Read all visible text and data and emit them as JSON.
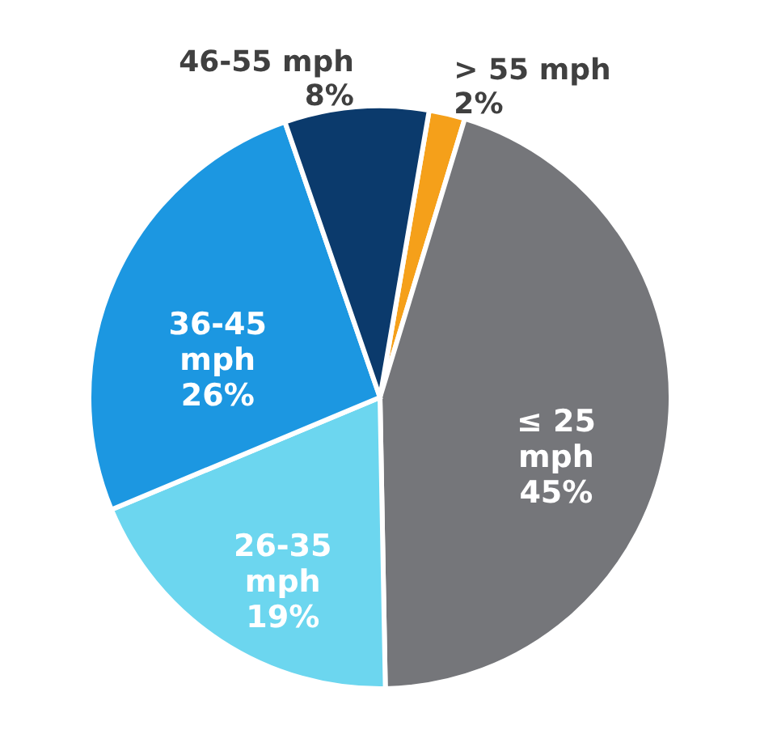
{
  "chart_data": {
    "type": "pie",
    "categories": [
      "> 55 mph",
      "≤ 25 mph",
      "26-35 mph",
      "36-45 mph",
      "46-55 mph"
    ],
    "values": [
      2,
      45,
      19,
      26,
      8
    ],
    "colors": [
      "#f5a01a",
      "#75767a",
      "#6cd6ef",
      "#1c97e1",
      "#0b3a6c"
    ],
    "value_labels": [
      "2%",
      "45%",
      "19%",
      "26%",
      "8%"
    ],
    "legend": false
  }
}
